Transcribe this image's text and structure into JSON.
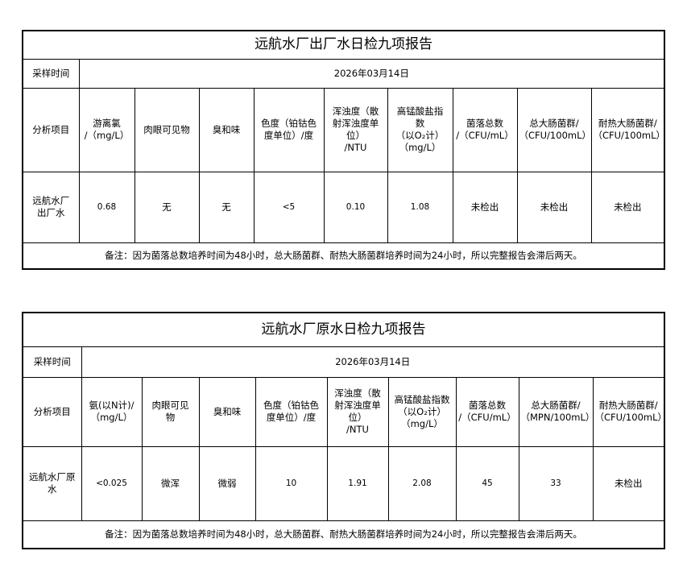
{
  "reports": [
    {
      "title": "远航水厂出厂水日检九项报告",
      "date_label": "采样时间",
      "date": "2026年03月14日",
      "item_label": "分析项目",
      "headers": [
        "游离氯\n/（mg/L）",
        "肉眼可见物",
        "臭和味",
        "色度（铂钴色\n度单位）/度",
        "浑浊度（散\n射浑浊度单\n位）\n/NTU",
        "高锰酸盐指\n数\n（以O₂计）\n（mg/L）",
        "菌落总数\n/（CFU/mL）",
        "总大肠菌群/\n（CFU/100mL）",
        "耐热大肠菌群/\n（CFU/100mL）"
      ],
      "sample": "远航水厂\n出厂水",
      "values": [
        "0.68",
        "无",
        "无",
        "<5",
        "0.10",
        "1.08",
        "未检出",
        "未检出",
        "未检出"
      ],
      "note": "备注：因为菌落总数培养时间为48小时，总大肠菌群、耐热大肠菌群培养时间为24小时，所以完整报告会滞后两天。"
    },
    {
      "title": "远航水厂原水日检九项报告",
      "date_label": "采样时间",
      "date": "2026年03月14日",
      "item_label": "分析项目",
      "headers": [
        "氨(以N计)/\n（mg/L）",
        "肉眼可见\n物",
        "臭和味",
        "色度（铂钴色\n度单位）/度",
        "浑浊度（散\n射浑浊度单\n位）\n/NTU",
        "高锰酸盐指数\n（以O₂计）\n（mg/L）",
        "菌落总数\n/（CFU/mL）",
        "总大肠菌群/\n（MPN/100mL）",
        "耐热大肠菌群/\n（CFU/100mL）"
      ],
      "sample": "远航水厂原\n水",
      "values": [
        "<0.025",
        "微浑",
        "微弱",
        "10",
        "1.91",
        "2.08",
        "45",
        "33",
        "未检出"
      ],
      "note": "备注：因为菌落总数培养时间为48小时，总大肠菌群、耐热大肠菌群培养时间为24小时，所以完整报告会滞后两天。"
    }
  ]
}
